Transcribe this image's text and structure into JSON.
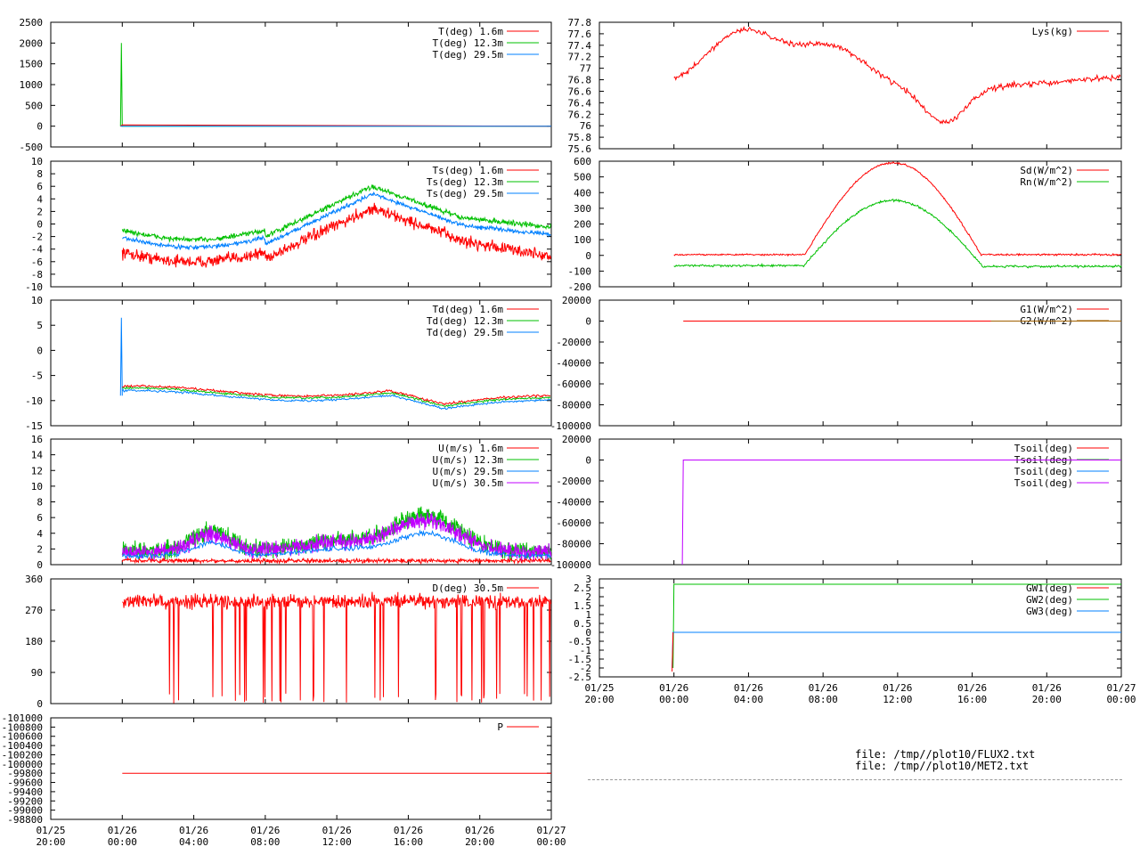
{
  "files": [
    "file: /tmp//plot10/FLUX2.txt",
    "file: /tmp//plot10/MET2.txt"
  ],
  "colors": {
    "red": "#ff0000",
    "green": "#00c000",
    "blue": "#0080ff",
    "purple": "#c000ff",
    "brown": "#a06000"
  },
  "chart_data": [
    {
      "type": "line",
      "id": "T",
      "yticks": [
        "2500",
        "2000",
        "1500",
        "1000",
        "500",
        "0",
        "-500"
      ],
      "ylim": [
        -500,
        2500
      ],
      "series": [
        {
          "name": "T(deg)  1.6m",
          "color": "red"
        },
        {
          "name": "T(deg) 12.3m",
          "color": "green"
        },
        {
          "name": "T(deg) 29.5m",
          "color": "blue"
        }
      ]
    },
    {
      "type": "line",
      "id": "Ts",
      "yticks": [
        "10",
        "8",
        "6",
        "4",
        "2",
        "0",
        "-2",
        "-4",
        "-6",
        "-8",
        "-10"
      ],
      "ylim": [
        -10,
        10
      ],
      "series": [
        {
          "name": "Ts(deg)  1.6m",
          "color": "red"
        },
        {
          "name": "Ts(deg) 12.3m",
          "color": "green"
        },
        {
          "name": "Ts(deg) 29.5m",
          "color": "blue"
        }
      ]
    },
    {
      "type": "line",
      "id": "Td",
      "yticks": [
        "10",
        "5",
        "0",
        "-5",
        "-10",
        "-15"
      ],
      "ylim": [
        -15,
        10
      ],
      "series": [
        {
          "name": "Td(deg)  1.6m",
          "color": "red"
        },
        {
          "name": "Td(deg) 12.3m",
          "color": "green"
        },
        {
          "name": "Td(deg) 29.5m",
          "color": "blue"
        }
      ]
    },
    {
      "type": "line",
      "id": "U",
      "yticks": [
        "16",
        "14",
        "12",
        "10",
        "8",
        "6",
        "4",
        "2",
        "0"
      ],
      "ylim": [
        0,
        16
      ],
      "series": [
        {
          "name": "U(m/s)  1.6m",
          "color": "red"
        },
        {
          "name": "U(m/s) 12.3m",
          "color": "green"
        },
        {
          "name": "U(m/s) 29.5m",
          "color": "blue"
        },
        {
          "name": "U(m/s) 30.5m",
          "color": "purple"
        }
      ]
    },
    {
      "type": "line",
      "id": "D",
      "yticks": [
        "360",
        "270",
        "180",
        "90",
        "0"
      ],
      "ylim": [
        0,
        360
      ],
      "series": [
        {
          "name": "D(deg) 30.5m",
          "color": "red"
        }
      ]
    },
    {
      "type": "line",
      "id": "P",
      "yticks": [
        "-101000",
        "-100800",
        "-100600",
        "-100400",
        "-100200",
        "-100000",
        "-99800",
        "-99600",
        "-99400",
        "-99200",
        "-99000",
        "-98800"
      ],
      "ylim": [
        -101000,
        -98800
      ],
      "series": [
        {
          "name": "P",
          "color": "red"
        }
      ]
    },
    {
      "type": "line",
      "id": "Lys",
      "yticks": [
        "77.8",
        "77.6",
        "77.4",
        "77.2",
        "77",
        "76.8",
        "76.6",
        "76.4",
        "76.2",
        "76",
        "75.8",
        "75.6"
      ],
      "ylim": [
        75.6,
        77.8
      ],
      "series": [
        {
          "name": "Lys(kg)",
          "color": "red"
        }
      ]
    },
    {
      "type": "line",
      "id": "Rad",
      "yticks": [
        "600",
        "500",
        "400",
        "300",
        "200",
        "100",
        "0",
        "-100",
        "-200"
      ],
      "ylim": [
        -200,
        600
      ],
      "series": [
        {
          "name": "Sd(W/m^2)",
          "color": "red"
        },
        {
          "name": "Rn(W/m^2)",
          "color": "green"
        }
      ]
    },
    {
      "type": "line",
      "id": "G",
      "yticks": [
        "20000",
        "0",
        "-20000",
        "-40000",
        "-60000",
        "-80000",
        "-100000"
      ],
      "ylim": [
        -100000,
        20000
      ],
      "series": [
        {
          "name": "G1(W/m^2)",
          "color": "red"
        },
        {
          "name": "G2(W/m^2)",
          "color": "brown"
        }
      ]
    },
    {
      "type": "line",
      "id": "Tsoil",
      "yticks": [
        "20000",
        "0",
        "-20000",
        "-40000",
        "-60000",
        "-80000",
        "-100000"
      ],
      "ylim": [
        -100000,
        20000
      ],
      "series": [
        {
          "name": "Tsoil(deg)",
          "color": "red"
        },
        {
          "name": "Tsoil(deg)",
          "color": "green"
        },
        {
          "name": "Tsoil(deg)",
          "color": "blue"
        },
        {
          "name": "Tsoil(deg)",
          "color": "purple"
        }
      ]
    },
    {
      "type": "line",
      "id": "GW",
      "yticks": [
        "3",
        "2.5",
        "2",
        "1.5",
        "1",
        "0.5",
        "0",
        "-0.5",
        "-1",
        "-1.5",
        "-2",
        "-2.5"
      ],
      "ylim": [
        -2.5,
        3
      ],
      "series": [
        {
          "name": "GW1(deg)",
          "color": "red"
        },
        {
          "name": "GW2(deg)",
          "color": "green"
        },
        {
          "name": "GW3(deg)",
          "color": "blue"
        }
      ]
    }
  ],
  "xticks": [
    [
      "01/25",
      "20:00"
    ],
    [
      "01/26",
      "00:00"
    ],
    [
      "01/26",
      "04:00"
    ],
    [
      "01/26",
      "08:00"
    ],
    [
      "01/26",
      "12:00"
    ],
    [
      "01/26",
      "16:00"
    ],
    [
      "01/26",
      "20:00"
    ],
    [
      "01/27",
      "00:00"
    ]
  ]
}
